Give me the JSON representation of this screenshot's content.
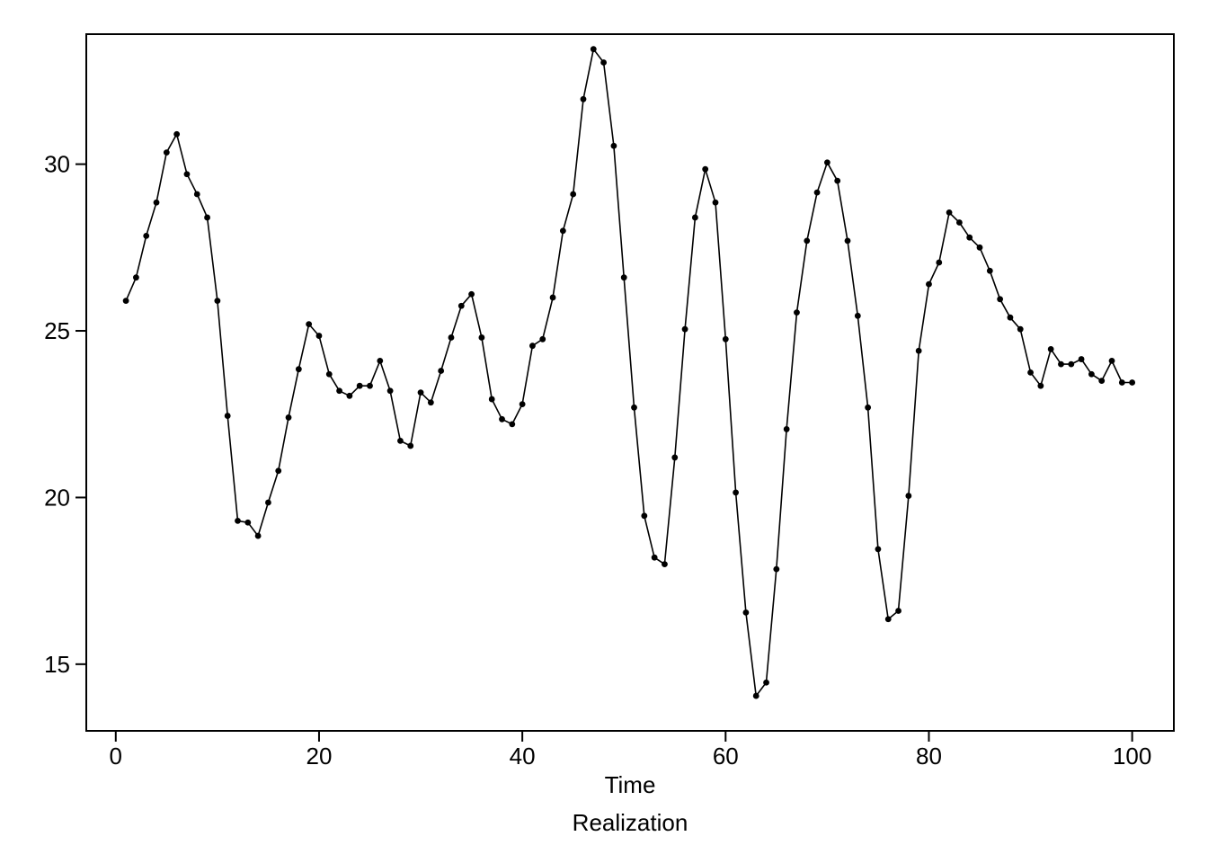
{
  "chart_data": {
    "type": "line",
    "title": "",
    "xlabel": "Time",
    "subtitle": "Realization",
    "ylabel": "",
    "xlim": [
      -2.9,
      104.1
    ],
    "ylim": [
      13.0,
      33.9
    ],
    "grid": false,
    "legend": "none",
    "markers": true,
    "xticks": [
      0,
      20,
      40,
      60,
      80,
      100
    ],
    "yticks": [
      15,
      20,
      25,
      30
    ],
    "series": [
      {
        "color": "#000000",
        "values": [
          [
            1,
            25.9
          ],
          [
            2,
            26.6
          ],
          [
            3,
            27.85
          ],
          [
            4,
            28.85
          ],
          [
            5,
            30.35
          ],
          [
            6,
            30.9
          ],
          [
            7,
            29.7
          ],
          [
            8,
            29.1
          ],
          [
            9,
            28.4
          ],
          [
            10,
            25.9
          ],
          [
            11,
            22.45
          ],
          [
            12,
            19.3
          ],
          [
            13,
            19.25
          ],
          [
            14,
            18.85
          ],
          [
            15,
            19.85
          ],
          [
            16,
            20.8
          ],
          [
            17,
            22.4
          ],
          [
            18,
            23.85
          ],
          [
            19,
            25.2
          ],
          [
            20,
            24.85
          ],
          [
            21,
            23.7
          ],
          [
            22,
            23.2
          ],
          [
            23,
            23.05
          ],
          [
            24,
            23.35
          ],
          [
            25,
            23.35
          ],
          [
            26,
            24.1
          ],
          [
            27,
            23.2
          ],
          [
            28,
            21.7
          ],
          [
            29,
            21.55
          ],
          [
            30,
            23.15
          ],
          [
            31,
            22.85
          ],
          [
            32,
            23.8
          ],
          [
            33,
            24.8
          ],
          [
            34,
            25.75
          ],
          [
            35,
            26.1
          ],
          [
            36,
            24.8
          ],
          [
            37,
            22.95
          ],
          [
            38,
            22.35
          ],
          [
            39,
            22.2
          ],
          [
            40,
            22.8
          ],
          [
            41,
            24.55
          ],
          [
            42,
            24.75
          ],
          [
            43,
            26.0
          ],
          [
            44,
            28.0
          ],
          [
            45,
            29.1
          ],
          [
            46,
            31.95
          ],
          [
            47,
            33.45
          ],
          [
            48,
            33.05
          ],
          [
            49,
            30.55
          ],
          [
            50,
            26.6
          ],
          [
            51,
            22.7
          ],
          [
            52,
            19.45
          ],
          [
            53,
            18.2
          ],
          [
            54,
            18.0
          ],
          [
            55,
            21.2
          ],
          [
            56,
            25.05
          ],
          [
            57,
            28.4
          ],
          [
            58,
            29.85
          ],
          [
            59,
            28.85
          ],
          [
            60,
            24.75
          ],
          [
            61,
            20.15
          ],
          [
            62,
            16.55
          ],
          [
            63,
            14.05
          ],
          [
            64,
            14.45
          ],
          [
            65,
            17.85
          ],
          [
            66,
            22.05
          ],
          [
            67,
            25.55
          ],
          [
            68,
            27.7
          ],
          [
            69,
            29.15
          ],
          [
            70,
            30.05
          ],
          [
            71,
            29.5
          ],
          [
            72,
            27.7
          ],
          [
            73,
            25.45
          ],
          [
            74,
            22.7
          ],
          [
            75,
            18.45
          ],
          [
            76,
            16.35
          ],
          [
            77,
            16.6
          ],
          [
            78,
            20.05
          ],
          [
            79,
            24.4
          ],
          [
            80,
            26.4
          ],
          [
            81,
            27.05
          ],
          [
            82,
            28.55
          ],
          [
            83,
            28.25
          ],
          [
            84,
            27.8
          ],
          [
            85,
            27.5
          ],
          [
            86,
            26.8
          ],
          [
            87,
            25.95
          ],
          [
            88,
            25.4
          ],
          [
            89,
            25.05
          ],
          [
            90,
            23.75
          ],
          [
            91,
            23.35
          ],
          [
            92,
            24.45
          ],
          [
            93,
            24.0
          ],
          [
            94,
            24.0
          ],
          [
            95,
            24.15
          ],
          [
            96,
            23.7
          ],
          [
            97,
            23.5
          ],
          [
            98,
            24.1
          ],
          [
            99,
            23.45
          ],
          [
            100,
            23.45
          ]
        ]
      }
    ]
  }
}
